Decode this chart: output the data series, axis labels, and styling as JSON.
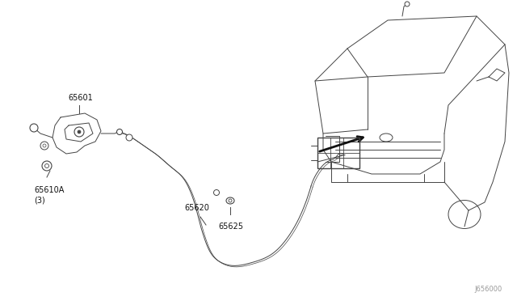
{
  "bg_color": "#ffffff",
  "line_color": "#444444",
  "dark_color": "#111111",
  "fig_width": 6.4,
  "fig_height": 3.72,
  "dpi": 100,
  "diagram_code": "J656000",
  "fs_label": 7.0
}
